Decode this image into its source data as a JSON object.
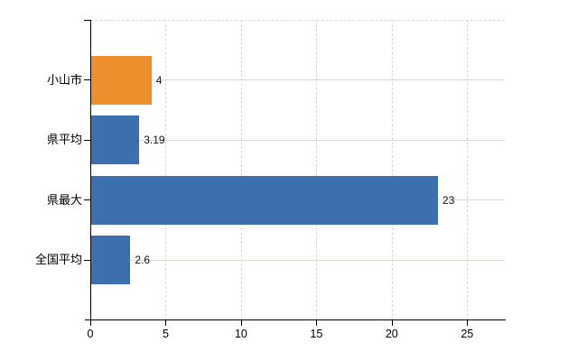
{
  "chart_data": {
    "type": "bar",
    "orientation": "horizontal",
    "categories": [
      "小山市",
      "県平均",
      "県最大",
      "全国平均"
    ],
    "values": [
      4,
      3.19,
      23,
      2.6
    ],
    "value_labels": [
      "4",
      "3.19",
      "23",
      "2.6"
    ],
    "bar_colors": [
      "#ef8e2d",
      "#3d6fae",
      "#3d6fae",
      "#3d6fae"
    ],
    "x_ticks": [
      0,
      5,
      10,
      15,
      20,
      25
    ],
    "x_tick_labels": [
      "0",
      "5",
      "10",
      "15",
      "20",
      "25"
    ],
    "xlim": [
      0,
      27.5
    ],
    "title": "",
    "xlabel": "",
    "ylabel": "",
    "legend": "none",
    "grid": {
      "vertical_lines": "dashed at each x tick",
      "horizontal_lines": "solid at each category center",
      "top_border": "dashed"
    }
  },
  "colors": {
    "background": "#ffffff",
    "bar_highlight": "#ef8e2d",
    "bar_default": "#3d6fae",
    "grid_vertical": "#d9d9d9",
    "grid_horizontal": "#d7dcd2",
    "axis": "#000000",
    "label_text": "#000000",
    "value_text": "#111111"
  }
}
